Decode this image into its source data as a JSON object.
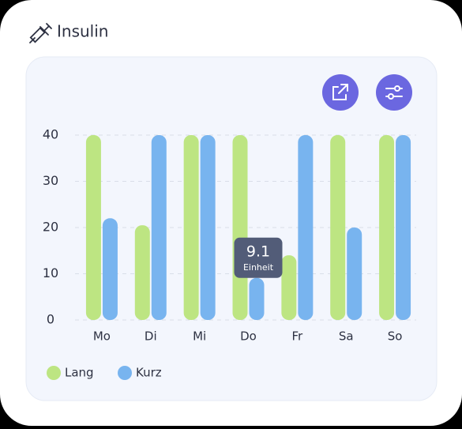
{
  "chart_data": {
    "type": "bar",
    "title": "Insulin",
    "categories": [
      "Mo",
      "Di",
      "Mi",
      "Do",
      "Fr",
      "Sa",
      "So"
    ],
    "series": [
      {
        "name": "Lang",
        "color": "#bde582",
        "values": [
          40,
          20.5,
          40,
          40,
          14,
          40,
          40
        ]
      },
      {
        "name": "Kurz",
        "color": "#78b4ef",
        "values": [
          22,
          40,
          40,
          9.1,
          40,
          20,
          40
        ]
      }
    ],
    "ylim": [
      0,
      40
    ],
    "yticks": [
      0,
      10,
      20,
      30,
      40
    ],
    "grid": true,
    "tooltip_unit": "Einheit"
  }
}
